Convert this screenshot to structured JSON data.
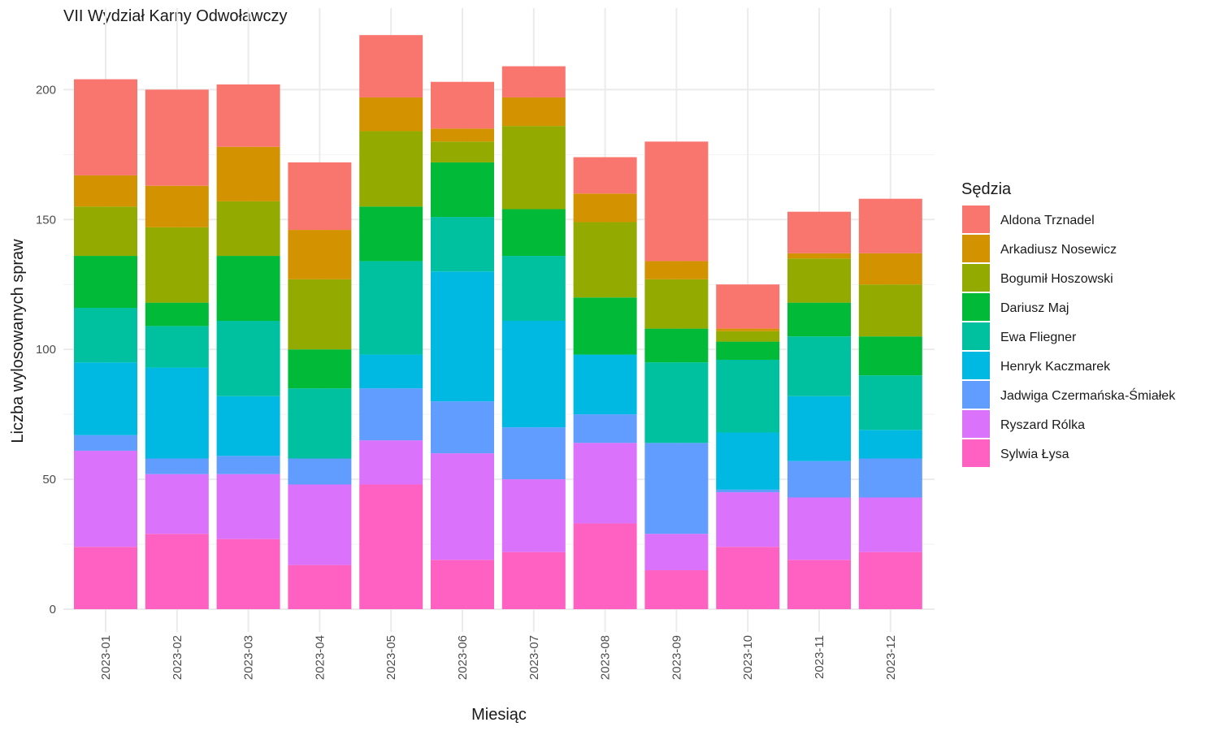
{
  "chart_data": {
    "type": "bar",
    "stacked": true,
    "title": "VII Wydział Karny Odwoławczy",
    "xlabel": "Miesiąc",
    "ylabel": "Liczba wylosowanych spraw",
    "ylim": [
      0,
      222
    ],
    "yticks": [
      0,
      50,
      100,
      150,
      200
    ],
    "grid": true,
    "legend_title": "Sędzia",
    "legend_position": "right",
    "categories": [
      "2023-01",
      "2023-02",
      "2023-03",
      "2023-04",
      "2023-05",
      "2023-06",
      "2023-07",
      "2023-08",
      "2023-09",
      "2023-10",
      "2023-11",
      "2023-12"
    ],
    "series": [
      {
        "name": "Sylwia Łysa",
        "color": "#FF61C3",
        "values": [
          24,
          29,
          27,
          17,
          48,
          19,
          22,
          33,
          15,
          24,
          19,
          22
        ]
      },
      {
        "name": "Ryszard Rólka",
        "color": "#DB72FB",
        "values": [
          37,
          23,
          25,
          31,
          17,
          41,
          28,
          31,
          14,
          21,
          24,
          21
        ]
      },
      {
        "name": "Jadwiga Czermańska-Śmiałek",
        "color": "#619CFF",
        "values": [
          6,
          6,
          7,
          10,
          20,
          20,
          20,
          11,
          35,
          1,
          14,
          15
        ]
      },
      {
        "name": "Henryk Kaczmarek",
        "color": "#00B9E3",
        "values": [
          28,
          35,
          23,
          0,
          13,
          50,
          41,
          23,
          0,
          22,
          25,
          11
        ]
      },
      {
        "name": "Ewa Fliegner",
        "color": "#00C19F",
        "values": [
          21,
          16,
          29,
          27,
          36,
          21,
          25,
          0,
          31,
          28,
          23,
          21
        ]
      },
      {
        "name": "Dariusz Maj",
        "color": "#00BA38",
        "values": [
          20,
          9,
          25,
          15,
          21,
          21,
          18,
          22,
          13,
          7,
          13,
          15
        ]
      },
      {
        "name": "Bogumił Hoszowski",
        "color": "#93AA00",
        "values": [
          19,
          29,
          21,
          27,
          29,
          8,
          32,
          29,
          19,
          4,
          17,
          20
        ]
      },
      {
        "name": "Arkadiusz Nosewicz",
        "color": "#D39200",
        "values": [
          12,
          16,
          21,
          19,
          13,
          5,
          11,
          11,
          7,
          1,
          2,
          12
        ]
      },
      {
        "name": "Aldona Trznadel",
        "color": "#F8766D",
        "values": [
          37,
          37,
          24,
          26,
          24,
          18,
          12,
          14,
          46,
          17,
          16,
          21
        ]
      }
    ],
    "legend_order": [
      "Aldona Trznadel",
      "Arkadiusz Nosewicz",
      "Bogumił Hoszowski",
      "Dariusz Maj",
      "Ewa Fliegner",
      "Henryk Kaczmarek",
      "Jadwiga Czermańska-Śmiałek",
      "Ryszard Rólka",
      "Sylwia Łysa"
    ]
  }
}
